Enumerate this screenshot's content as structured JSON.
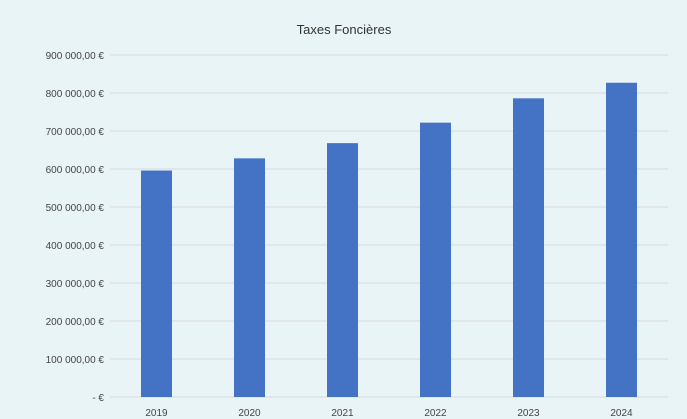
{
  "chart_data": {
    "type": "bar",
    "title": "Taxes Foncières",
    "xlabel": "",
    "ylabel": "",
    "categories": [
      "2019",
      "2020",
      "2021",
      "2022",
      "2023",
      "2024"
    ],
    "values": [
      596000,
      628000,
      668000,
      722000,
      786000,
      827000
    ],
    "ylim": [
      0,
      900000
    ],
    "yticks": [
      0,
      100000,
      200000,
      300000,
      400000,
      500000,
      600000,
      700000,
      800000,
      900000
    ],
    "ytick_labels": [
      "- €",
      "100 000,00 €",
      "200 000,00 €",
      "300 000,00 €",
      "400 000,00 €",
      "500 000,00 €",
      "600 000,00 €",
      "700 000,00 €",
      "800 000,00 €",
      "900 000,00 €"
    ],
    "grid": true,
    "legend": "none",
    "bar_color": "#4472c4",
    "grid_color": "#d9d9d9"
  }
}
